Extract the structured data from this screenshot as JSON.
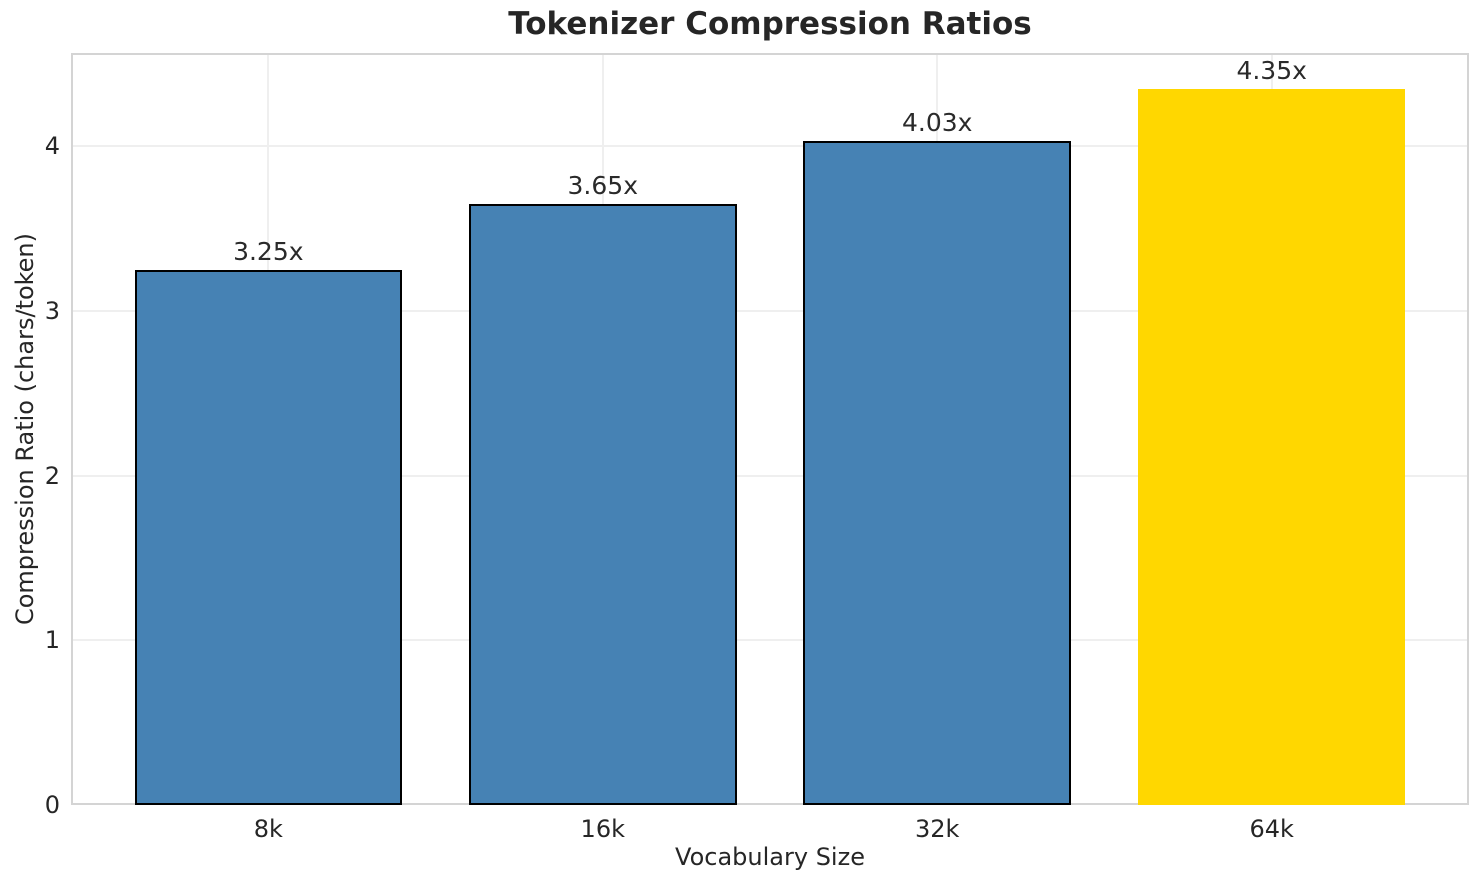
{
  "chart_data": {
    "type": "bar",
    "title": "Tokenizer Compression Ratios",
    "xlabel": "Vocabulary Size",
    "ylabel": "Compression Ratio (chars/token)",
    "categories": [
      "8k",
      "16k",
      "32k",
      "64k"
    ],
    "values": [
      3.25,
      3.65,
      4.03,
      4.35
    ],
    "bar_labels": [
      "3.25x",
      "3.65x",
      "4.03x",
      "4.35x"
    ],
    "bar_colors": [
      "#4682b4",
      "#4682b4",
      "#4682b4",
      "#ffd700"
    ],
    "bar_edge_colors": [
      "#000000",
      "#000000",
      "#000000",
      "none"
    ],
    "highlighted_category": "64k",
    "yticks": [
      0,
      1,
      2,
      3,
      4
    ],
    "ylim": [
      0,
      4.567
    ],
    "grid": true,
    "grid_color": "#efefef",
    "spine_color": "#d4d4d4",
    "text_color": "#262626",
    "legend_position": "none"
  }
}
